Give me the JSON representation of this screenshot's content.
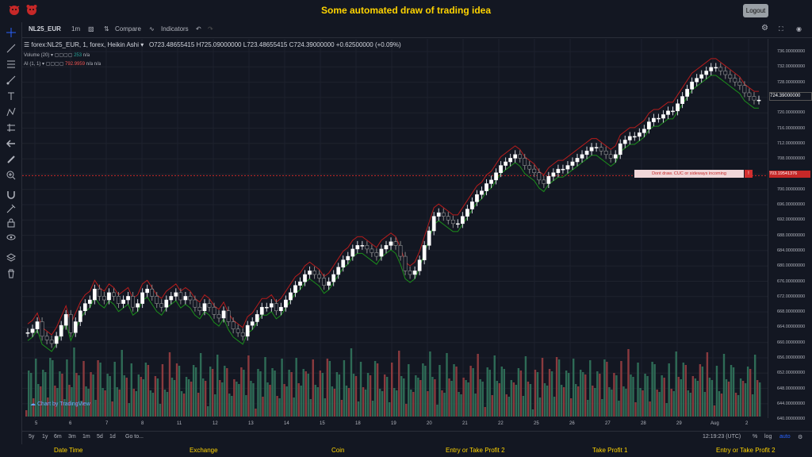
{
  "app": {
    "title": "Some automated draw of trading idea",
    "logout": "Logout"
  },
  "toolbar": {
    "symbol": "NL25_EUR",
    "interval": "1m",
    "compare": "Compare",
    "indicators": "Indicators"
  },
  "legend": {
    "main": "forex:NL25_EUR, 1, forex, Heikin Ashi",
    "open": "O723.48655415",
    "high": "H725.09000000",
    "low": "L723.48655415",
    "close": "C724.39000000",
    "change": "+0.62500000 (+0.09%)",
    "volume_label": "Volume (20)",
    "volume_value": "253",
    "volume_na": "n/a",
    "ai_label": "AI (1, 1)",
    "ai_value": "792.9959",
    "ai_na1": "n/a",
    "ai_na2": "n/a"
  },
  "price_axis": {
    "labels": [
      "736.00000000",
      "732.00000000",
      "728.00000000",
      "724.00000000",
      "720.00000000",
      "716.00000000",
      "712.00000000",
      "708.00000000",
      "704.00000000",
      "700.00000000",
      "696.00000000",
      "692.00000000",
      "688.00000000",
      "684.00000000",
      "680.00000000",
      "676.00000000",
      "672.00000000",
      "668.00000000",
      "664.00000000",
      "660.00000000",
      "656.00000000",
      "652.00000000",
      "648.00000000",
      "644.00000000",
      "640.00000000"
    ],
    "current": "724.39000000",
    "idea_price": "703.19541376"
  },
  "time_axis": {
    "labels": [
      "5",
      "6",
      "7",
      "8",
      "11",
      "12",
      "13",
      "14",
      "15",
      "18",
      "19",
      "20",
      "21",
      "22",
      "25",
      "26",
      "27",
      "28",
      "29",
      "Aug",
      "2"
    ]
  },
  "idea": {
    "text": "Dont draw. CUC or sideways incoming",
    "close": "!"
  },
  "bottom": {
    "ranges": [
      "5y",
      "1y",
      "6m",
      "3m",
      "1m",
      "5d",
      "1d"
    ],
    "goto": "Go to...",
    "time": "12:19:23 (UTC)",
    "pct": "%",
    "log": "log",
    "auto": "auto"
  },
  "footer": {
    "cols": [
      "Date Time",
      "Exchange",
      "Coin",
      "Entry or Take Profit 2",
      "Take Profit 1",
      "Entry or Take Profit 2"
    ]
  },
  "watermark": "Chart by TradingView",
  "colors": {
    "up": "#26a69a",
    "down": "#ef5350",
    "green_line": "#1b8f1b",
    "red_line": "#b71c1c"
  },
  "chart_data": {
    "type": "line",
    "price_min": 638,
    "price_max": 738,
    "series": [
      {
        "name": "Heikin Ashi",
        "values": [
          660,
          661,
          663,
          659,
          658,
          657,
          659,
          662,
          665,
          660,
          663,
          666,
          668,
          669,
          672,
          670,
          669,
          671,
          670,
          668,
          669,
          670,
          667,
          668,
          671,
          672,
          670,
          668,
          667,
          669,
          670,
          671,
          669,
          670,
          669,
          667,
          666,
          668,
          667,
          665,
          664,
          666,
          663,
          661,
          660,
          659,
          662,
          663,
          665,
          667,
          667,
          668,
          666,
          667,
          669,
          671,
          673,
          674,
          676,
          677,
          676,
          675,
          673,
          674,
          676,
          678,
          680,
          681,
          683,
          684,
          684,
          683,
          682,
          681,
          683,
          684,
          685,
          684,
          681,
          677,
          676,
          677,
          680,
          684,
          688,
          692,
          693,
          692,
          691,
          690,
          690,
          692,
          694,
          696,
          698,
          699,
          701,
          702,
          704,
          706,
          707,
          708,
          709,
          708,
          706,
          705,
          704,
          702,
          701,
          703,
          704,
          705,
          705,
          706,
          707,
          708,
          709,
          710,
          711,
          711,
          710,
          709,
          708,
          709,
          712,
          713,
          714,
          714,
          715,
          716,
          718,
          719,
          719,
          720,
          721,
          721,
          723,
          725,
          727,
          729,
          730,
          731,
          732,
          733,
          733,
          732,
          731,
          730,
          729,
          728,
          726,
          725,
          724,
          724
        ]
      }
    ]
  }
}
